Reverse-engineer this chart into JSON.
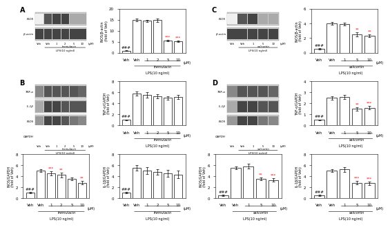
{
  "panel_A_bar": {
    "categories": [
      "Veh",
      "Veh",
      "1",
      "2",
      "5",
      "10"
    ],
    "values": [
      1.0,
      15.0,
      14.5,
      14.8,
      5.5,
      5.2
    ],
    "errors": [
      0.1,
      0.6,
      0.5,
      0.7,
      0.4,
      0.3
    ],
    "ylabel": "iNOS/β-actin\n(fold of Veh)",
    "xlabel_drug": "tremulacin",
    "sig_above": [
      "###",
      null,
      null,
      null,
      "***",
      "***"
    ],
    "ylim": [
      0,
      20
    ],
    "yticks": [
      0,
      5,
      10,
      15,
      20
    ]
  },
  "panel_B_TNF": {
    "categories": [
      "Veh",
      "Veh",
      "1",
      "2",
      "5",
      "10"
    ],
    "values": [
      1.0,
      5.8,
      5.5,
      5.3,
      5.0,
      5.2
    ],
    "errors": [
      0.1,
      0.4,
      0.5,
      0.4,
      0.3,
      0.4
    ],
    "ylabel": "TNF-α/GAPDH\n(fold of Veh)",
    "xlabel_drug": "tremulacin",
    "sig_above": [
      "###",
      null,
      null,
      null,
      null,
      null
    ],
    "ylim": [
      0,
      8
    ],
    "yticks": [
      0,
      2,
      4,
      6,
      8
    ]
  },
  "panel_B_iNOS": {
    "categories": [
      "Veh",
      "Veh",
      "1",
      "2",
      "5",
      "10"
    ],
    "values": [
      1.0,
      5.0,
      4.5,
      4.2,
      3.5,
      2.8
    ],
    "errors": [
      0.1,
      0.3,
      0.4,
      0.4,
      0.3,
      0.3
    ],
    "ylabel": "iNOS/GAPDH\n(fold of Veh)",
    "xlabel_drug": "tremulacin",
    "sig_above": [
      "###",
      null,
      "***",
      "**",
      null,
      "**"
    ],
    "ylim": [
      0,
      8
    ],
    "yticks": [
      0,
      2,
      4,
      6,
      8
    ]
  },
  "panel_B_IL1b": {
    "categories": [
      "Veh",
      "Veh",
      "1",
      "2",
      "5",
      "10"
    ],
    "values": [
      1.0,
      5.5,
      5.0,
      4.8,
      4.5,
      4.3
    ],
    "errors": [
      0.1,
      0.5,
      0.6,
      0.5,
      0.6,
      0.7
    ],
    "ylabel": "IL-1β/GAPDH\n(fold of Veh)",
    "xlabel_drug": "tremulacin",
    "sig_above": [
      "###",
      null,
      null,
      null,
      null,
      null
    ],
    "ylim": [
      0,
      8
    ],
    "yticks": [
      0,
      2,
      4,
      6,
      8
    ]
  },
  "panel_C_bar": {
    "categories": [
      "Veh",
      "Veh",
      "1",
      "5",
      "10"
    ],
    "values": [
      0.5,
      4.0,
      3.9,
      2.5,
      2.3
    ],
    "errors": [
      0.1,
      0.2,
      0.2,
      0.3,
      0.2
    ],
    "ylabel": "iNOS/β-actin\n(fold of Veh)",
    "xlabel_drug": "salicortin",
    "sig_above": [
      "###",
      null,
      null,
      "**",
      "**"
    ],
    "ylim": [
      0,
      6
    ],
    "yticks": [
      0,
      2,
      4,
      6
    ]
  },
  "panel_D_TNF": {
    "categories": [
      "Veh",
      "Veh",
      "1",
      "5",
      "10"
    ],
    "values": [
      0.5,
      2.5,
      2.6,
      1.5,
      1.6
    ],
    "errors": [
      0.05,
      0.15,
      0.2,
      0.15,
      0.15
    ],
    "ylabel": "TNF-α/GAPDH\n(fold of Veh)",
    "xlabel_drug": "salicortin",
    "sig_above": [
      "###",
      null,
      null,
      "**",
      "***"
    ],
    "ylim": [
      0,
      4
    ],
    "yticks": [
      0,
      1,
      2,
      3,
      4
    ]
  },
  "panel_D_iNOS": {
    "categories": [
      "Veh",
      "Veh",
      "1",
      "5",
      "10"
    ],
    "values": [
      0.5,
      5.5,
      5.8,
      3.5,
      3.3
    ],
    "errors": [
      0.1,
      0.3,
      0.4,
      0.3,
      0.3
    ],
    "ylabel": "iNOS/GAPDH\n(fold of Veh)",
    "xlabel_drug": "salicortin",
    "sig_above": [
      "###",
      null,
      null,
      "**",
      "***"
    ],
    "ylim": [
      0,
      8
    ],
    "yticks": [
      0,
      2,
      4,
      6,
      8
    ]
  },
  "panel_D_IL1b": {
    "categories": [
      "Veh",
      "Veh",
      "1",
      "5",
      "10"
    ],
    "values": [
      0.5,
      5.0,
      5.2,
      2.8,
      2.7
    ],
    "errors": [
      0.1,
      0.3,
      0.4,
      0.3,
      0.3
    ],
    "ylabel": "IL-1β/GAPDH\n(fold of Veh)",
    "xlabel_drug": "salicortin",
    "sig_above": [
      "###",
      null,
      null,
      "***",
      "***"
    ],
    "ylim": [
      0,
      8
    ],
    "yticks": [
      0,
      2,
      4,
      6,
      8
    ]
  },
  "bar_color": "#ffffff",
  "bar_edge_color": "#000000",
  "lps_label": "LPS(10 ng/ml)",
  "um_label": "(μM)"
}
